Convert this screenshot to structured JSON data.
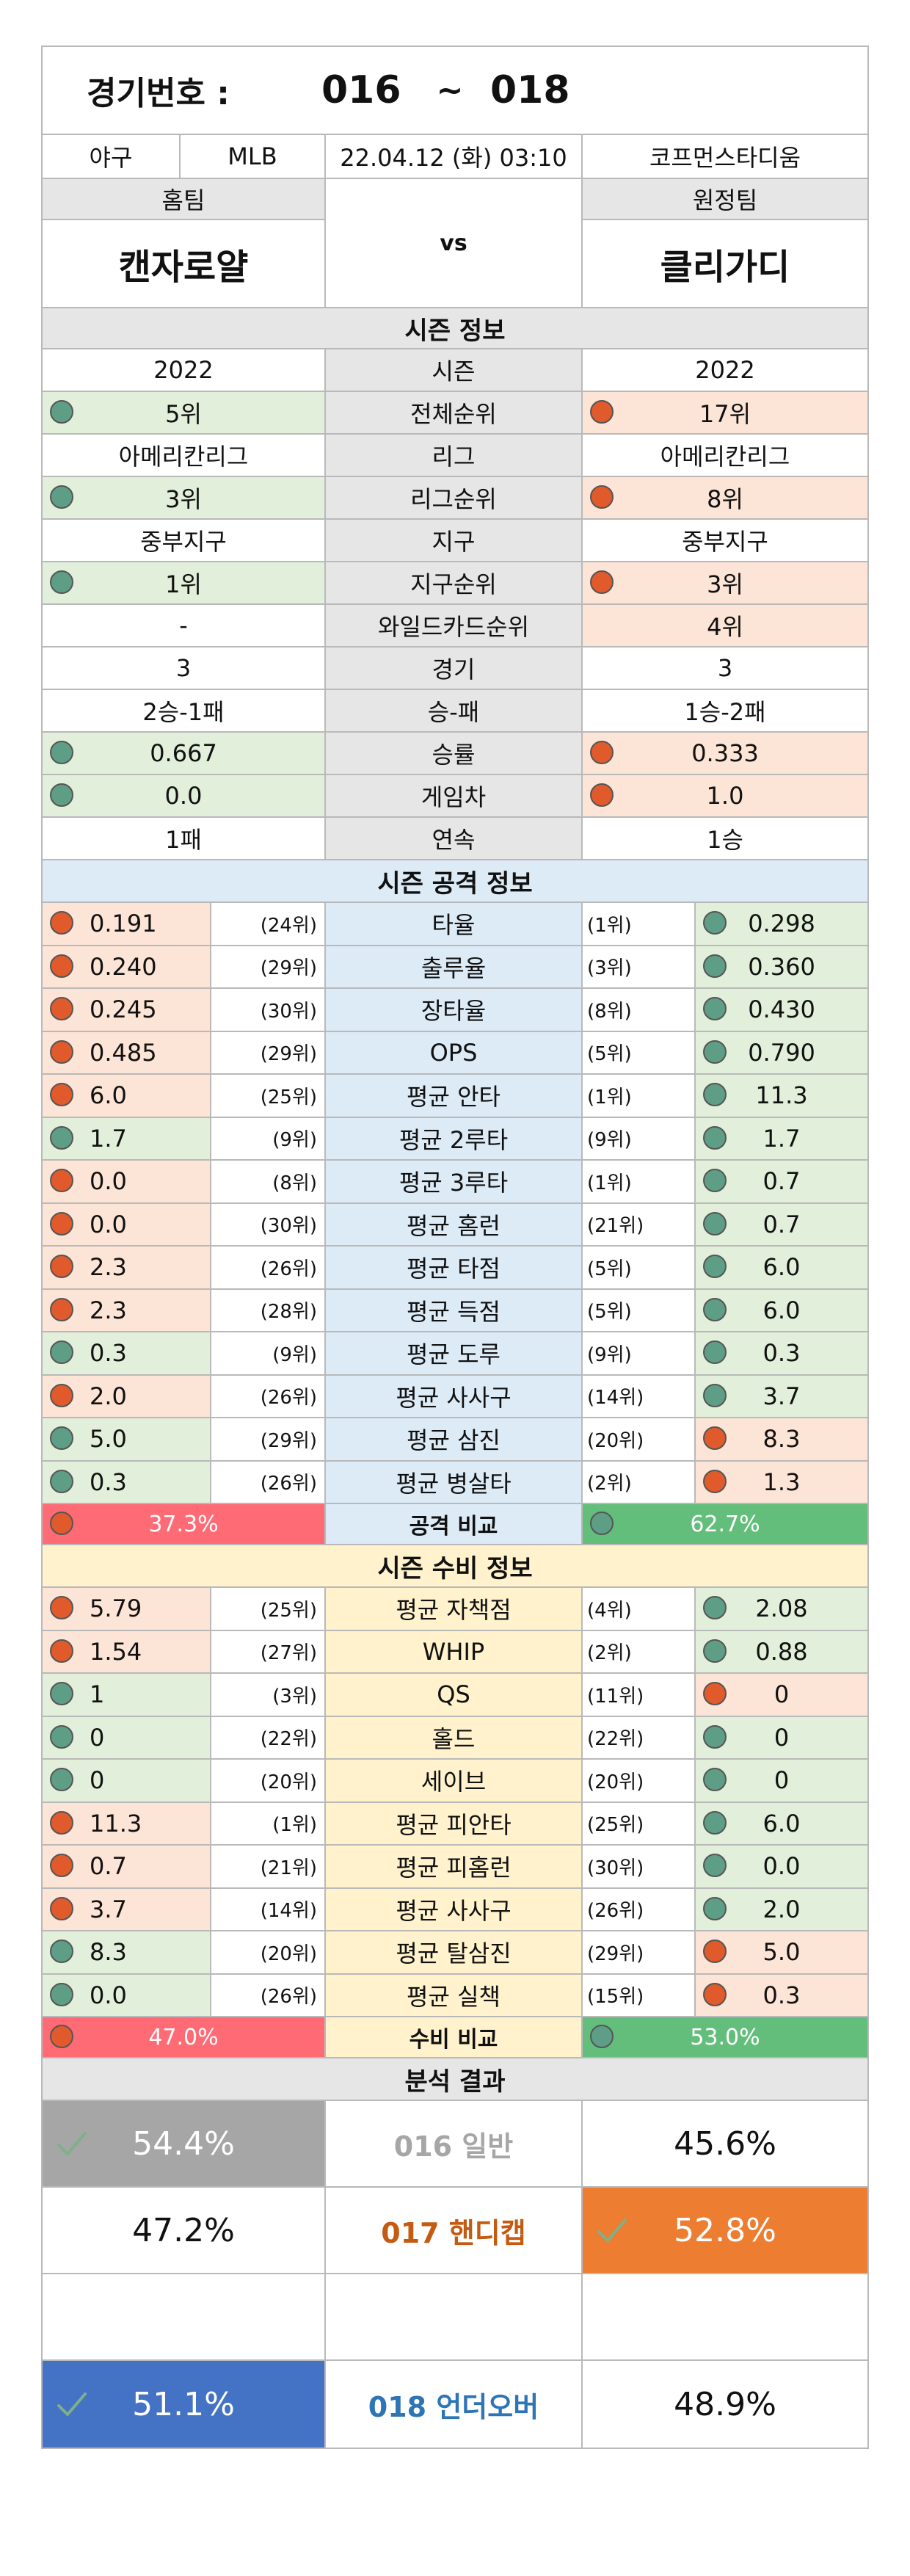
{
  "header": {
    "label": "경기번호 :",
    "from": "016",
    "tilde": "~",
    "to": "018"
  },
  "game": {
    "sport": "야구",
    "league": "MLB",
    "datetime": "22.04.12 (화) 03:10",
    "stadium": "코프먼스타디움"
  },
  "teams": {
    "home_label": "홈팀",
    "away_label": "원정팀",
    "home": "캔자로얄",
    "away": "클리가디",
    "vs": "vs"
  },
  "season": {
    "title": "시즌 정보",
    "rows": [
      {
        "label": "시즌",
        "home": "2022",
        "away": "2022",
        "hc": "",
        "ac": ""
      },
      {
        "label": "전체순위",
        "home": "5위",
        "away": "17위",
        "hc": "g",
        "ac": "r"
      },
      {
        "label": "리그",
        "home": "아메리칸리그",
        "away": "아메리칸리그",
        "hc": "",
        "ac": ""
      },
      {
        "label": "리그순위",
        "home": "3위",
        "away": "8위",
        "hc": "g",
        "ac": "r"
      },
      {
        "label": "지구",
        "home": "중부지구",
        "away": "중부지구",
        "hc": "",
        "ac": ""
      },
      {
        "label": "지구순위",
        "home": "1위",
        "away": "3위",
        "hc": "g",
        "ac": "r"
      },
      {
        "label": "와일드카드순위",
        "home": "-",
        "away": "4위",
        "hc": "",
        "ac": "rn"
      },
      {
        "label": "경기",
        "home": "3",
        "away": "3",
        "hc": "",
        "ac": ""
      },
      {
        "label": "승-패",
        "home": "2승-1패",
        "away": "1승-2패",
        "hc": "",
        "ac": ""
      },
      {
        "label": "승률",
        "home": "0.667",
        "away": "0.333",
        "hc": "g",
        "ac": "r"
      },
      {
        "label": "게임차",
        "home": "0.0",
        "away": "1.0",
        "hc": "g",
        "ac": "r"
      },
      {
        "label": "연속",
        "home": "1패",
        "away": "1승",
        "hc": "",
        "ac": ""
      }
    ]
  },
  "offense": {
    "title": "시즌 공격 정보",
    "rows": [
      {
        "label": "타율",
        "home": "0.191",
        "hr": "(24위)",
        "away": "0.298",
        "ar": "(1위)",
        "hc": "r",
        "ac": "g"
      },
      {
        "label": "출루율",
        "home": "0.240",
        "hr": "(29위)",
        "away": "0.360",
        "ar": "(3위)",
        "hc": "r",
        "ac": "g"
      },
      {
        "label": "장타율",
        "home": "0.245",
        "hr": "(30위)",
        "away": "0.430",
        "ar": "(8위)",
        "hc": "r",
        "ac": "g"
      },
      {
        "label": "OPS",
        "home": "0.485",
        "hr": "(29위)",
        "away": "0.790",
        "ar": "(5위)",
        "hc": "r",
        "ac": "g"
      },
      {
        "label": "평균 안타",
        "home": "6.0",
        "hr": "(25위)",
        "away": "11.3",
        "ar": "(1위)",
        "hc": "r",
        "ac": "g"
      },
      {
        "label": "평균 2루타",
        "home": "1.7",
        "hr": "(9위)",
        "away": "1.7",
        "ar": "(9위)",
        "hc": "g",
        "ac": "g"
      },
      {
        "label": "평균 3루타",
        "home": "0.0",
        "hr": "(8위)",
        "away": "0.7",
        "ar": "(1위)",
        "hc": "r",
        "ac": "g"
      },
      {
        "label": "평균 홈런",
        "home": "0.0",
        "hr": "(30위)",
        "away": "0.7",
        "ar": "(21위)",
        "hc": "r",
        "ac": "g"
      },
      {
        "label": "평균 타점",
        "home": "2.3",
        "hr": "(26위)",
        "away": "6.0",
        "ar": "(5위)",
        "hc": "r",
        "ac": "g"
      },
      {
        "label": "평균 득점",
        "home": "2.3",
        "hr": "(28위)",
        "away": "6.0",
        "ar": "(5위)",
        "hc": "r",
        "ac": "g"
      },
      {
        "label": "평균 도루",
        "home": "0.3",
        "hr": "(9위)",
        "away": "0.3",
        "ar": "(9위)",
        "hc": "g",
        "ac": "g"
      },
      {
        "label": "평균 사사구",
        "home": "2.0",
        "hr": "(26위)",
        "away": "3.7",
        "ar": "(14위)",
        "hc": "r",
        "ac": "g"
      },
      {
        "label": "평균 삼진",
        "home": "5.0",
        "hr": "(29위)",
        "away": "8.3",
        "ar": "(20위)",
        "hc": "g",
        "ac": "r"
      },
      {
        "label": "평균 병살타",
        "home": "0.3",
        "hr": "(26위)",
        "away": "1.3",
        "ar": "(2위)",
        "hc": "g",
        "ac": "r"
      }
    ],
    "compare_label": "공격 비교",
    "home_pct": "37.3%",
    "away_pct": "62.7%",
    "home_share": 0.373
  },
  "defense": {
    "title": "시즌 수비 정보",
    "rows": [
      {
        "label": "평균 자책점",
        "home": "5.79",
        "hr": "(25위)",
        "away": "2.08",
        "ar": "(4위)",
        "hc": "r",
        "ac": "g"
      },
      {
        "label": "WHIP",
        "home": "1.54",
        "hr": "(27위)",
        "away": "0.88",
        "ar": "(2위)",
        "hc": "r",
        "ac": "g"
      },
      {
        "label": "QS",
        "home": "1",
        "hr": "(3위)",
        "away": "0",
        "ar": "(11위)",
        "hc": "g",
        "ac": "r"
      },
      {
        "label": "홀드",
        "home": "0",
        "hr": "(22위)",
        "away": "0",
        "ar": "(22위)",
        "hc": "g",
        "ac": "g"
      },
      {
        "label": "세이브",
        "home": "0",
        "hr": "(20위)",
        "away": "0",
        "ar": "(20위)",
        "hc": "g",
        "ac": "g"
      },
      {
        "label": "평균 피안타",
        "home": "11.3",
        "hr": "(1위)",
        "away": "6.0",
        "ar": "(25위)",
        "hc": "r",
        "ac": "g"
      },
      {
        "label": "평균 피홈런",
        "home": "0.7",
        "hr": "(21위)",
        "away": "0.0",
        "ar": "(30위)",
        "hc": "r",
        "ac": "g"
      },
      {
        "label": "평균 사사구",
        "home": "3.7",
        "hr": "(14위)",
        "away": "2.0",
        "ar": "(26위)",
        "hc": "r",
        "ac": "g"
      },
      {
        "label": "평균 탈삼진",
        "home": "8.3",
        "hr": "(20위)",
        "away": "5.0",
        "ar": "(29위)",
        "hc": "g",
        "ac": "r"
      },
      {
        "label": "평균 실책",
        "home": "0.0",
        "hr": "(26위)",
        "away": "0.3",
        "ar": "(15위)",
        "hc": "g",
        "ac": "r"
      }
    ],
    "compare_label": "수비 비교",
    "home_pct": "47.0%",
    "away_pct": "53.0%",
    "home_share": 0.47
  },
  "analysis": {
    "title": "분석 결과",
    "rows": [
      {
        "home": "54.4%",
        "label": "016 일반",
        "away": "45.6%",
        "pick": "home",
        "pick_color": "#a6a6a6",
        "label_color": "#a6a6a6"
      },
      {
        "home": "47.2%",
        "label": "017 핸디캡",
        "away": "52.8%",
        "pick": "away",
        "pick_color": "#ed7d31",
        "label_color": "#c55a11"
      },
      {
        "home": "",
        "label": "",
        "away": "",
        "pick": "none",
        "pick_color": "",
        "label_color": ""
      },
      {
        "home": "51.1%",
        "label": "018 언더오버",
        "away": "48.9%",
        "pick": "home",
        "pick_color": "#4472c4",
        "label_color": "#2e75b6"
      }
    ]
  }
}
